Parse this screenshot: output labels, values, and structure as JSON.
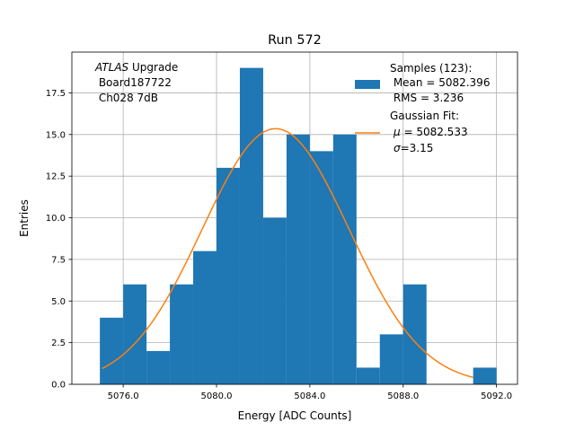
{
  "chart_data": {
    "type": "histogram",
    "title": "Run 572",
    "xlabel": "Energy [ADC Counts]",
    "ylabel": "Entries",
    "xlim": [
      5073.8,
      5092.9
    ],
    "ylim": [
      0,
      19.95
    ],
    "grid": true,
    "xticks": [
      5076,
      5080,
      5084,
      5088,
      5092
    ],
    "xtick_labels": [
      "5076.0",
      "5080.0",
      "5084.0",
      "5088.0",
      "5092.0"
    ],
    "yticks": [
      0,
      2.5,
      5,
      7.5,
      10,
      12.5,
      15,
      17.5
    ],
    "ytick_labels": [
      "0.0",
      "2.5",
      "5.0",
      "7.5",
      "10.0",
      "12.5",
      "15.0",
      "17.5"
    ],
    "bins": {
      "edges": [
        5075,
        5076,
        5077,
        5078,
        5079,
        5080,
        5081,
        5082,
        5083,
        5084,
        5085,
        5086,
        5087,
        5088,
        5089,
        5090,
        5091,
        5092
      ],
      "counts": [
        4,
        6,
        2,
        6,
        8,
        13,
        19,
        10,
        15,
        14,
        15,
        1,
        3,
        6,
        0,
        0,
        1
      ]
    },
    "fit": {
      "name": "Gaussian Fit",
      "mu": 5082.533,
      "sigma": 3.15,
      "amplitude": 15.35,
      "x_range": [
        5075.1,
        5091.0
      ]
    },
    "colors": {
      "hist": "#1f77b4",
      "fit": "#ff7f0e",
      "grid": "#b0b0b0"
    },
    "annotation": {
      "experiment": "ATLAS",
      "line1_rest": " Upgrade",
      "line2": " Board187722",
      "line3": " Ch028 7dB"
    },
    "legend": {
      "position": "top-right",
      "hist_title": "Samples (123):",
      "hist_mean": " Mean = 5082.396",
      "hist_rms": " RMS = 3.236",
      "fit_title": "Gaussian Fit:",
      "fit_mu_symbol": "μ",
      "fit_mu_value": " = 5082.533",
      "fit_sigma_symbol": "σ",
      "fit_sigma_value": "=3.15"
    }
  }
}
